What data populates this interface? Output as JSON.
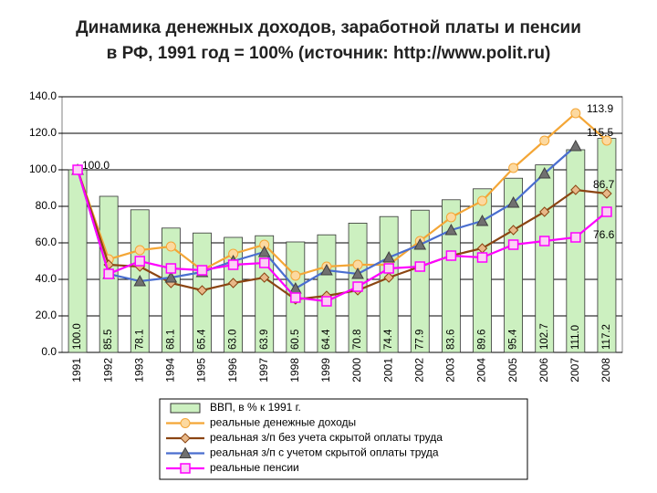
{
  "chart_data": {
    "type": "combo",
    "title": [
      "Динамика денежных доходов, заработной платы и пенсии",
      "в РФ, 1991 год = 100% (источник: http://www.polit.ru)"
    ],
    "categories": [
      "1991",
      "1992",
      "1993",
      "1994",
      "1995",
      "1996",
      "1997",
      "1998",
      "1999",
      "2000",
      "2001",
      "2002",
      "2003",
      "2004",
      "2005",
      "2006",
      "2007",
      "2008"
    ],
    "ylim": [
      0,
      140
    ],
    "yticks": [
      {
        "value": 0,
        "label": "0.0"
      },
      {
        "value": 20,
        "label": "20.0"
      },
      {
        "value": 40,
        "label": "40.0"
      },
      {
        "value": 60,
        "label": "60.0"
      },
      {
        "value": 80,
        "label": "80.0"
      },
      {
        "value": 100,
        "label": "100.0"
      },
      {
        "value": 120,
        "label": "120.0"
      },
      {
        "value": 140,
        "label": "140.0"
      }
    ],
    "grid": true,
    "series": [
      {
        "name": "ВВП, в % к 1991 г.",
        "type": "bar",
        "color": "#ccf0c0",
        "values": [
          100.0,
          85.5,
          78.1,
          68.1,
          65.4,
          63.0,
          63.9,
          60.5,
          64.4,
          70.8,
          74.4,
          77.9,
          83.6,
          89.6,
          95.4,
          102.7,
          111.0,
          117.2
        ],
        "value_labels": [
          "100.0",
          "85.5",
          "78.1",
          "68.1",
          "65.4",
          "63.0",
          "63.9",
          "60.5",
          "64.4",
          "70.8",
          "74.4",
          "77.9",
          "83.6",
          "89.6",
          "95.4",
          "102.7",
          "111.0",
          "117.2"
        ]
      },
      {
        "name": "реальные денежные доходы",
        "type": "line",
        "marker": "circle",
        "color": "#f4a636",
        "values": [
          100,
          51,
          56,
          58,
          45,
          54,
          59,
          42,
          47,
          48,
          48,
          61,
          74,
          83,
          101,
          116,
          131,
          116
        ]
      },
      {
        "name": "реальная з/п без учета скрытой оплаты труда",
        "type": "line",
        "marker": "diamond",
        "color": "#8b4513",
        "values": [
          100,
          48,
          47,
          38,
          34,
          38,
          41,
          29,
          31,
          34,
          41,
          47,
          53,
          57,
          67,
          77,
          89,
          87
        ]
      },
      {
        "name": "реальная з/п с учетом скрытой оплаты труда",
        "type": "line",
        "marker": "triangle",
        "color": "#4a6ecf",
        "values": [
          100,
          43,
          39,
          41,
          44,
          50,
          55,
          35,
          45,
          43,
          52,
          59,
          67,
          72,
          82,
          98,
          113,
          null
        ]
      },
      {
        "name": "реальные пенсии",
        "type": "line",
        "marker": "square",
        "color": "#ff00ff",
        "values": [
          100,
          43,
          50,
          46,
          45,
          48,
          49,
          30,
          28,
          36,
          46,
          47,
          53,
          52,
          59,
          61,
          63,
          77
        ]
      }
    ],
    "annotations": [
      "113.9",
      "115.5",
      "100.0",
      "86.7",
      "76.6"
    ]
  }
}
